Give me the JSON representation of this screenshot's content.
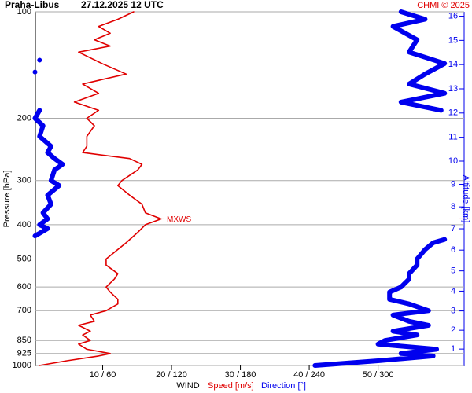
{
  "chart_data": {
    "type": "vertical-profile",
    "title": "Praha-Libus",
    "subtitle": "27.12.2025 12 UTC",
    "credit": "CHMI © 2025",
    "y_label": "Pressure [hPa]",
    "y2_label": "Altitude [km]",
    "x_label": "WIND",
    "ylim": [
      100,
      1000
    ],
    "log_scale": true,
    "y_inverted": true,
    "yticks": [
      100,
      200,
      300,
      400,
      500,
      600,
      700,
      850,
      925,
      1000
    ],
    "grid": true,
    "xlim": [
      0,
      62.5
    ],
    "x2lim": [
      0,
      375
    ],
    "xticks": [
      {
        "value": 10,
        "label": "10 / 60"
      },
      {
        "value": 20,
        "label": "20 / 120"
      },
      {
        "value": 30,
        "label": "30 / 180"
      },
      {
        "value": 40,
        "label": "40 / 240"
      },
      {
        "value": 50,
        "label": "50 / 300"
      }
    ],
    "y2ticks": [
      1,
      2,
      3,
      4,
      5,
      6,
      7,
      8,
      9,
      10,
      11,
      12,
      13,
      14,
      15,
      16
    ],
    "series": [
      {
        "name": "Speed [m/s]",
        "color": "#e00000",
        "axis": "x",
        "pressure": [
          1000,
          970,
          940,
          925,
          900,
          870,
          850,
          820,
          800,
          770,
          750,
          720,
          700,
          670,
          650,
          620,
          600,
          570,
          550,
          520,
          500,
          470,
          450,
          420,
          400,
          385,
          370,
          350,
          330,
          310,
          300,
          280,
          270,
          260,
          250,
          240,
          225,
          210,
          200,
          190,
          180,
          170,
          160,
          150,
          140,
          130,
          125,
          120,
          115,
          110,
          105,
          100
        ],
        "values": [
          0.8,
          4.8,
          9.4,
          11.1,
          7.7,
          6.5,
          8.2,
          7.1,
          8.2,
          6.5,
          8.8,
          8.2,
          10.5,
          12.2,
          12.2,
          11.1,
          10.5,
          11.7,
          12.2,
          10.5,
          10.5,
          12.2,
          13.4,
          15.1,
          16.2,
          18.5,
          16.2,
          15.7,
          13.9,
          12.2,
          12.8,
          15.1,
          15.7,
          13.9,
          7.1,
          7.7,
          7.7,
          8.8,
          7.7,
          9.4,
          5.9,
          9.4,
          7.1,
          13.4,
          9.9,
          6.5,
          11.1,
          8.8,
          11.1,
          9.4,
          12.2,
          14.5
        ]
      },
      {
        "name": "Direction [°]",
        "color": "#0000ee",
        "axis": "x2",
        "pressure": [
          1000,
          970,
          940,
          925,
          900,
          870,
          850,
          820,
          800,
          770,
          750,
          720,
          700,
          670,
          650,
          620,
          600,
          570,
          550,
          520,
          500,
          470,
          450,
          440,
          null,
          430,
          410,
          400,
          385,
          370,
          350,
          330,
          310,
          300,
          280,
          270,
          260,
          250,
          240,
          225,
          210,
          200,
          190,
          null,
          148,
          null,
          137,
          null,
          190,
          180,
          170,
          160,
          150,
          140,
          130,
          120,
          110,
          105,
          100
        ],
        "values": [
          245,
          300,
          348,
          320,
          351,
          300,
          306,
          334,
          313,
          344,
          327,
          313,
          344,
          327,
          310,
          310,
          320,
          327,
          327,
          334,
          334,
          341,
          348,
          358,
          null,
          1,
          12,
          5,
          12,
          8,
          15,
          12,
          22,
          15,
          18,
          25,
          18,
          12,
          15,
          5,
          8,
          1,
          5,
          null,
          1,
          null,
          5,
          null,
          355,
          320,
          358,
          327,
          341,
          358,
          327,
          334,
          313,
          341,
          320
        ]
      }
    ],
    "annotation": {
      "text": "MXWS",
      "pressure": 385
    }
  }
}
